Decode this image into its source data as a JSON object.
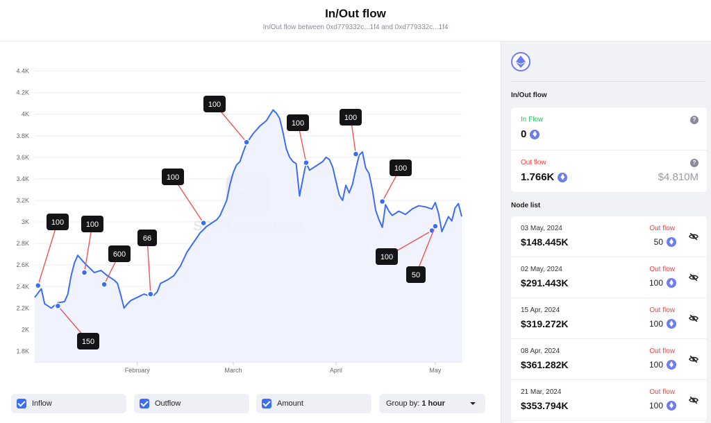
{
  "header": {
    "title": "In/Out flow",
    "subtitle": "In/Out flow between 0xd779332c...1f4 and 0xd779332c...1f4"
  },
  "watermark": "SPOTONCHAIN",
  "chart_data": {
    "type": "area",
    "y_tick_labels": [
      "1.8K",
      "2K",
      "2.2K",
      "2.4K",
      "2.6K",
      "2.8K",
      "3K",
      "3.2K",
      "3.4K",
      "3.6K",
      "3.8K",
      "4K",
      "4.2K",
      "4.4K"
    ],
    "y_ticks": [
      1800,
      2000,
      2200,
      2400,
      2600,
      2800,
      3000,
      3200,
      3400,
      3600,
      3800,
      4000,
      4200,
      4400
    ],
    "ylim": [
      1700,
      4500
    ],
    "x_tick_labels": [
      "February",
      "March",
      "April",
      "May"
    ],
    "x_ticks": [
      31,
      60,
      91,
      121
    ],
    "xlim": [
      0,
      129
    ],
    "series": [
      {
        "points": [
          [
            0,
            2300
          ],
          [
            2,
            2380
          ],
          [
            3,
            2240
          ],
          [
            5,
            2200
          ],
          [
            7,
            2250
          ],
          [
            9,
            2260
          ],
          [
            10,
            2330
          ],
          [
            11,
            2500
          ],
          [
            12,
            2620
          ],
          [
            13,
            2690
          ],
          [
            15,
            2620
          ],
          [
            17,
            2560
          ],
          [
            18,
            2530
          ],
          [
            20,
            2550
          ],
          [
            22,
            2500
          ],
          [
            24,
            2460
          ],
          [
            25,
            2430
          ],
          [
            26,
            2320
          ],
          [
            27,
            2200
          ],
          [
            28,
            2240
          ],
          [
            29,
            2270
          ],
          [
            31,
            2300
          ],
          [
            33,
            2330
          ],
          [
            35,
            2310
          ],
          [
            36,
            2320
          ],
          [
            37,
            2350
          ],
          [
            38,
            2430
          ],
          [
            40,
            2460
          ],
          [
            42,
            2500
          ],
          [
            44,
            2590
          ],
          [
            46,
            2720
          ],
          [
            48,
            2810
          ],
          [
            50,
            2900
          ],
          [
            52,
            2960
          ],
          [
            54,
            3000
          ],
          [
            55,
            3020
          ],
          [
            56,
            3060
          ],
          [
            58,
            3200
          ],
          [
            59,
            3350
          ],
          [
            60,
            3460
          ],
          [
            61,
            3530
          ],
          [
            62,
            3560
          ],
          [
            63,
            3650
          ],
          [
            64,
            3730
          ],
          [
            66,
            3820
          ],
          [
            68,
            3890
          ],
          [
            70,
            3940
          ],
          [
            71,
            3990
          ],
          [
            72,
            4040
          ],
          [
            73,
            4010
          ],
          [
            74,
            3960
          ],
          [
            75,
            3830
          ],
          [
            76,
            3680
          ],
          [
            77,
            3600
          ],
          [
            78,
            3560
          ],
          [
            79,
            3540
          ],
          [
            80,
            3240
          ],
          [
            81,
            3400
          ],
          [
            82,
            3550
          ],
          [
            83,
            3480
          ],
          [
            85,
            3520
          ],
          [
            87,
            3560
          ],
          [
            88,
            3600
          ],
          [
            89,
            3580
          ],
          [
            90,
            3510
          ],
          [
            91,
            3380
          ],
          [
            92,
            3250
          ],
          [
            93,
            3200
          ],
          [
            94,
            3340
          ],
          [
            95,
            3270
          ],
          [
            96,
            3350
          ],
          [
            97,
            3490
          ],
          [
            98,
            3620
          ],
          [
            99,
            3650
          ],
          [
            100,
            3500
          ],
          [
            101,
            3450
          ],
          [
            102,
            3300
          ],
          [
            103,
            3110
          ],
          [
            104,
            3020
          ],
          [
            105,
            2950
          ],
          [
            106,
            3160
          ],
          [
            107,
            3100
          ],
          [
            108,
            3060
          ],
          [
            110,
            3100
          ],
          [
            112,
            3070
          ],
          [
            114,
            3120
          ],
          [
            116,
            3150
          ],
          [
            118,
            3140
          ],
          [
            120,
            3120
          ],
          [
            121,
            3180
          ],
          [
            122,
            3080
          ],
          [
            123,
            2910
          ],
          [
            124,
            2980
          ],
          [
            125,
            3050
          ],
          [
            126,
            3010
          ],
          [
            127,
            3130
          ],
          [
            128,
            3170
          ],
          [
            129,
            3050
          ]
        ]
      }
    ],
    "annotations": [
      {
        "label": "100",
        "x": 1,
        "y": 2410
      },
      {
        "label": "150",
        "x": 7,
        "y": 2220
      },
      {
        "label": "100",
        "x": 15,
        "y": 2530
      },
      {
        "label": "600",
        "x": 21,
        "y": 2420
      },
      {
        "label": "66",
        "x": 35,
        "y": 2330
      },
      {
        "label": "100",
        "x": 51,
        "y": 2990
      },
      {
        "label": "100",
        "x": 64,
        "y": 3740
      },
      {
        "label": "100",
        "x": 82,
        "y": 3550
      },
      {
        "label": "100",
        "x": 97,
        "y": 3630
      },
      {
        "label": "100",
        "x": 105,
        "y": 3190
      },
      {
        "label": "100",
        "x": 120,
        "y": 2920
      },
      {
        "label": "50",
        "x": 121,
        "y": 2960
      }
    ],
    "colors": {
      "line": "#3b6cf5",
      "area": "#eef1fd",
      "marker": "#3b6cf5",
      "connector": "#ef5350",
      "label_bg": "#141416"
    }
  },
  "controls": {
    "inflow_label": "Inflow",
    "outflow_label": "Outflow",
    "amount_label": "Amount",
    "group_by_label": "Group by:",
    "group_by_value": "1 hour"
  },
  "sidebar": {
    "flow_title": "In/Out flow",
    "in_flow": {
      "label": "In Flow",
      "value": "0",
      "color": "#22c55e"
    },
    "out_flow": {
      "label": "Out flow",
      "value": "1.766K",
      "usd": "$4.810M",
      "color": "#ef4444"
    },
    "node_list_title": "Node list",
    "nodes": [
      {
        "date": "03 May, 2024",
        "usd": "$148.445K",
        "direction": "Out flow",
        "amount": "50"
      },
      {
        "date": "02 May, 2024",
        "usd": "$291.443K",
        "direction": "Out flow",
        "amount": "100"
      },
      {
        "date": "15 Apr, 2024",
        "usd": "$319.272K",
        "direction": "Out flow",
        "amount": "100"
      },
      {
        "date": "08 Apr, 2024",
        "usd": "$361.282K",
        "direction": "Out flow",
        "amount": "100"
      },
      {
        "date": "21 Mar, 2024",
        "usd": "$353.794K",
        "direction": "Out flow",
        "amount": "100"
      }
    ]
  }
}
